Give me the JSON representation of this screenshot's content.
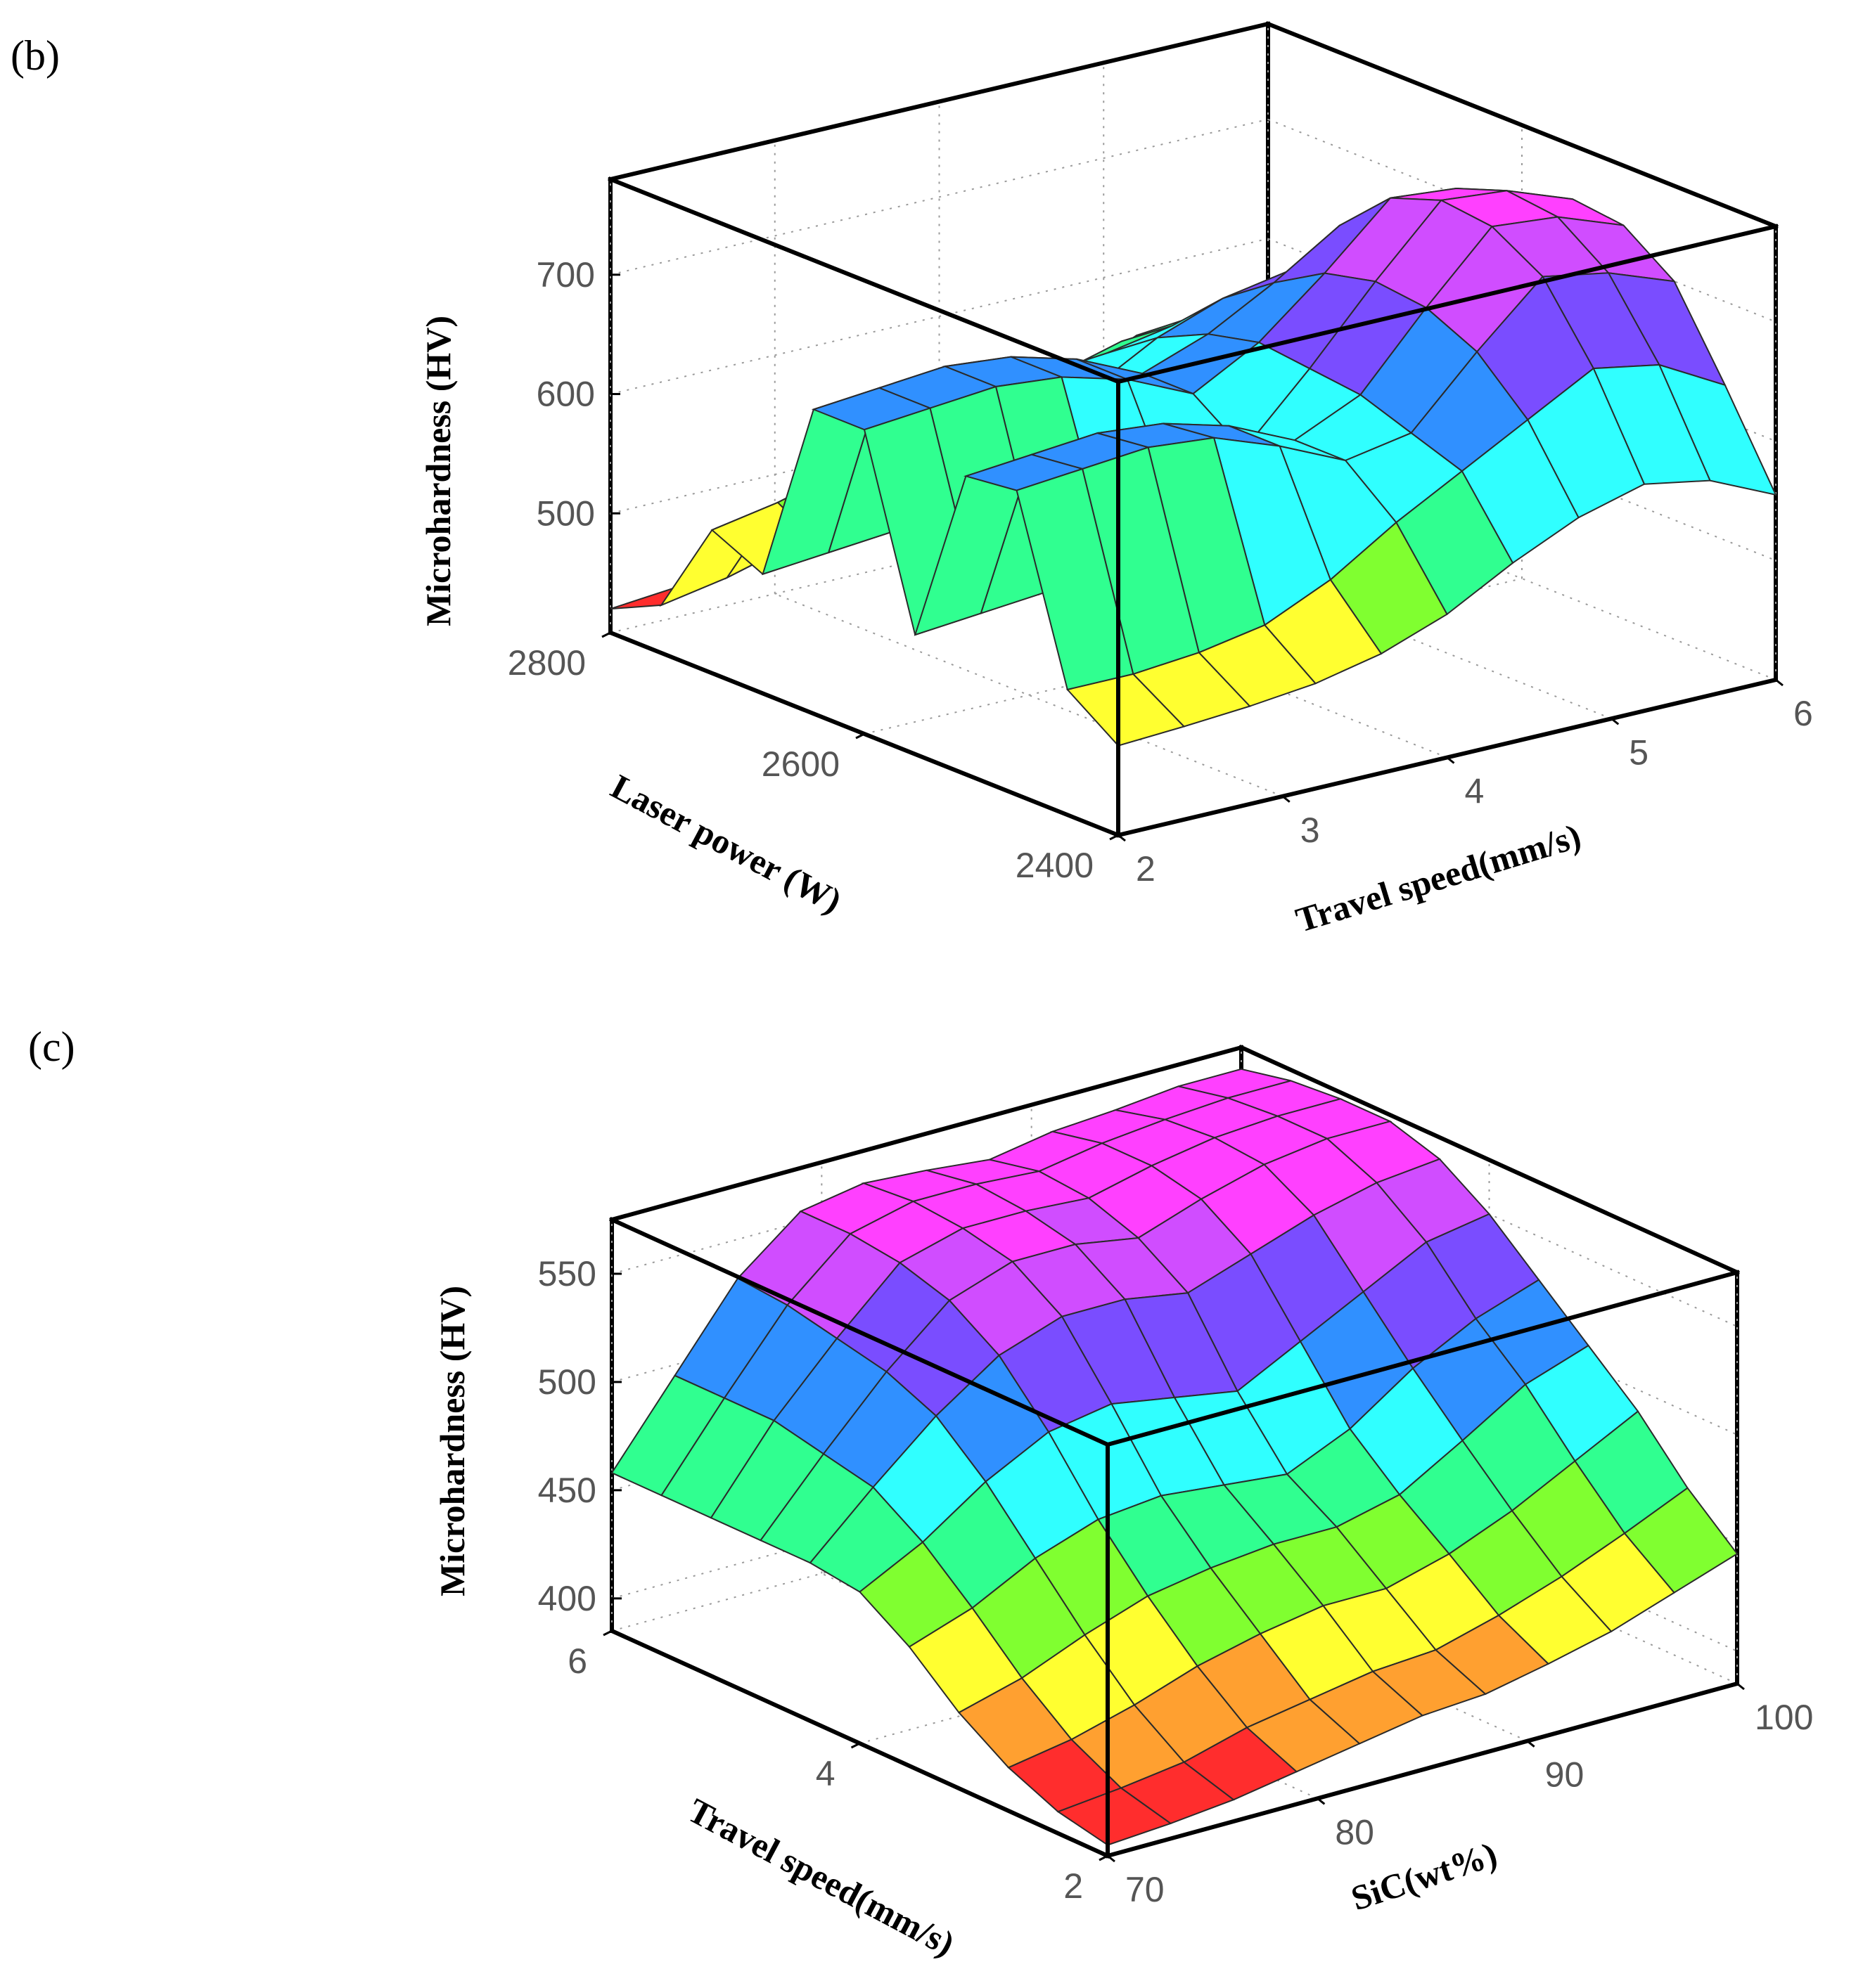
{
  "panels": {
    "b": {
      "label": "(b)"
    },
    "c": {
      "label": "(c)"
    }
  },
  "chart_data": [
    {
      "type": "surface",
      "panel": "b",
      "zlabel": "Microhardness (HV)",
      "xlabel": "Laser power (W)",
      "ylabel": "Travel speed(mm/s)",
      "x_ticks": [
        "2400",
        "2600",
        "2800"
      ],
      "y_ticks": [
        "2",
        "3",
        "4",
        "5",
        "6"
      ],
      "z_ticks": [
        "500",
        "600",
        "700"
      ],
      "xlim": [
        2400,
        2800
      ],
      "ylim": [
        2,
        6
      ],
      "zlim": [
        400,
        780
      ],
      "x": [
        2400,
        2440,
        2480,
        2520,
        2560,
        2600,
        2640,
        2680,
        2720,
        2760,
        2800
      ],
      "y": [
        2,
        2.4,
        2.8,
        3.2,
        3.6,
        4,
        4.4,
        4.8,
        5.2,
        5.6,
        6
      ],
      "z": [
        [
          475,
          505,
          655,
          650,
          500,
          655,
          655,
          500,
          520,
          440,
          420
        ],
        [
          478,
          505,
          660,
          655,
          505,
          660,
          660,
          505,
          530,
          450,
          425
        ],
        [
          482,
          510,
          665,
          660,
          510,
          665,
          665,
          510,
          545,
          465,
          430
        ],
        [
          488,
          520,
          660,
          655,
          520,
          660,
          660,
          520,
          560,
          480,
          440
        ],
        [
          500,
          545,
          640,
          640,
          550,
          645,
          645,
          550,
          575,
          500,
          455
        ],
        [
          520,
          580,
          615,
          615,
          590,
          620,
          620,
          590,
          585,
          525,
          470
        ],
        [
          550,
          610,
          625,
          640,
          645,
          650,
          640,
          620,
          590,
          555,
          495
        ],
        [
          575,
          640,
          680,
          700,
          705,
          695,
          670,
          640,
          600,
          570,
          520
        ],
        [
          590,
          670,
          730,
          755,
          760,
          745,
          705,
          650,
          600,
          570,
          545
        ],
        [
          580,
          660,
          720,
          750,
          755,
          740,
          700,
          640,
          595,
          565,
          550
        ],
        [
          555,
          630,
          700,
          730,
          735,
          720,
          680,
          625,
          585,
          560,
          550
        ]
      ],
      "colorscale": [
        "#ff2d2d",
        "#ffa030",
        "#ffff30",
        "#80ff30",
        "#30ff90",
        "#30ffff",
        "#3090ff",
        "#7a4dff",
        "#d04dff",
        "#ff40ff"
      ]
    },
    {
      "type": "surface",
      "panel": "c",
      "zlabel": "Microhardness (HV)",
      "xlabel": "Travel speed(mm/s)",
      "ylabel": "SiC(wt%)",
      "x_ticks": [
        "2",
        "4",
        "6"
      ],
      "y_ticks": [
        "70",
        "80",
        "90",
        "100"
      ],
      "z_ticks": [
        "400",
        "450",
        "500",
        "550"
      ],
      "xlim": [
        2,
        6
      ],
      "ylim": [
        70,
        100
      ],
      "zlim": [
        385,
        575
      ],
      "x": [
        2,
        2.4,
        2.8,
        3.2,
        3.6,
        4,
        4.4,
        4.8,
        5.2,
        5.6,
        6
      ],
      "y": [
        70,
        73,
        76,
        79,
        82,
        85,
        88,
        91,
        94,
        97,
        100
      ],
      "z": [
        [
          390,
          395,
          405,
          420,
          440,
          455,
          458,
          458,
          458,
          458,
          458
        ],
        [
          392,
          398,
          410,
          428,
          450,
          470,
          485,
          490,
          495,
          495,
          495
        ],
        [
          395,
          402,
          418,
          440,
          465,
          490,
          510,
          520,
          525,
          530,
          532
        ],
        [
          400,
          410,
          428,
          450,
          475,
          505,
          530,
          545,
          552,
          555,
          555
        ],
        [
          405,
          415,
          435,
          455,
          478,
          510,
          540,
          555,
          560,
          562,
          560
        ],
        [
          410,
          420,
          440,
          458,
          475,
          505,
          540,
          555,
          560,
          562,
          558
        ],
        [
          412,
          422,
          440,
          458,
          472,
          500,
          535,
          550,
          558,
          560,
          555
        ],
        [
          418,
          430,
          448,
          465,
          485,
          515,
          545,
          560,
          565,
          565,
          560
        ],
        [
          425,
          440,
          460,
          482,
          505,
          530,
          555,
          568,
          570,
          568,
          562
        ],
        [
          435,
          452,
          475,
          500,
          520,
          545,
          562,
          572,
          572,
          570,
          565
        ],
        [
          445,
          465,
          490,
          510,
          530,
          550,
          565,
          572,
          572,
          570,
          565
        ]
      ],
      "colorscale": [
        "#ff2d2d",
        "#ffa030",
        "#ffff30",
        "#80ff30",
        "#30ff90",
        "#30ffff",
        "#3090ff",
        "#7a4dff",
        "#d04dff",
        "#ff40ff"
      ]
    }
  ]
}
